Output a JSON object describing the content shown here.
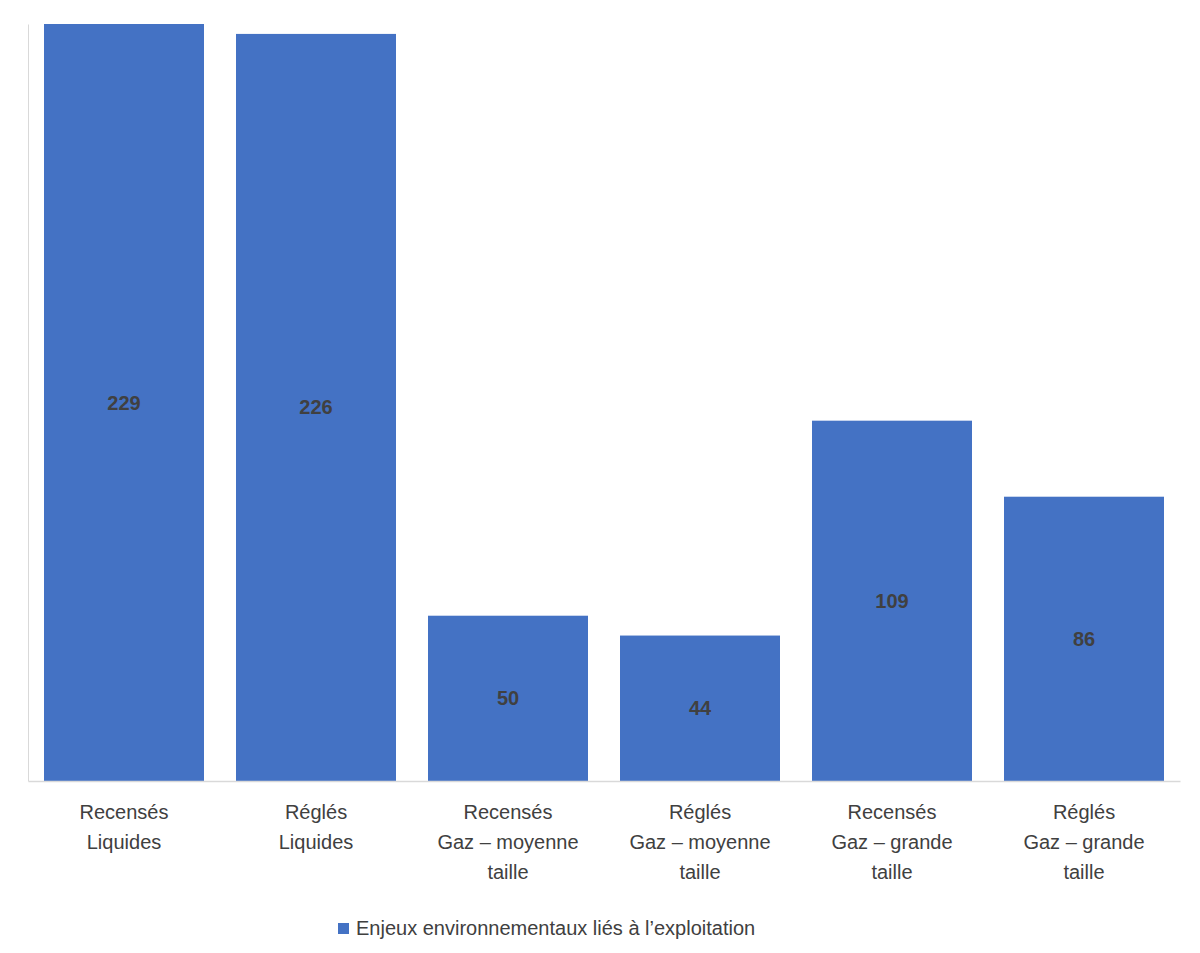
{
  "chart_data": {
    "type": "bar",
    "categories": [
      "Recensés\nLiquides",
      "Réglés\nLiquides",
      "Recensés\nGaz – moyenne\ntaille",
      "Réglés\nGaz – moyenne\ntaille",
      "Recensés\nGaz – grande\ntaille",
      "Réglés\nGaz – grande\ntaille"
    ],
    "series": [
      {
        "name": "Enjeux environnementaux liés à l’exploitation",
        "color": "#4472c4",
        "values": [
          229,
          226,
          50,
          44,
          109,
          86
        ]
      }
    ],
    "ylim": [
      0,
      229
    ],
    "yticks": [],
    "grid": false,
    "legend": "bottom",
    "data_labels": true,
    "tick_labels": "x"
  }
}
